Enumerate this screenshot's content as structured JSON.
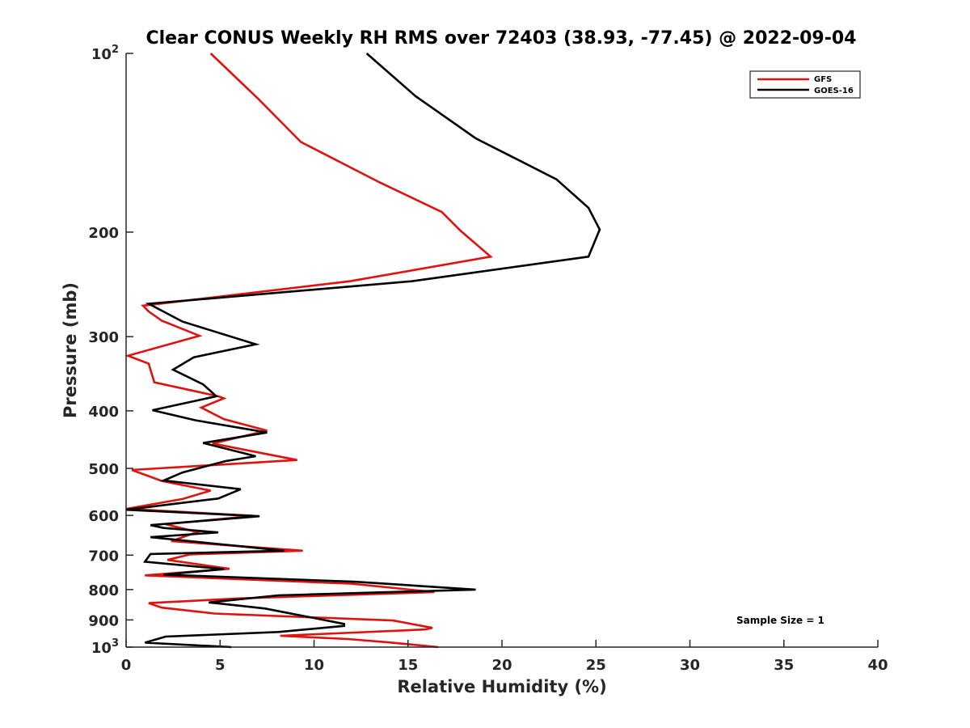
{
  "chart_data": {
    "type": "line",
    "orientation": "profile",
    "title": "Clear CONUS Weekly RH RMS over 72403 (38.93, -77.45) @ 2022-09-04",
    "xlabel": "Relative Humidity (%)",
    "ylabel": "Pressure (mb)",
    "xlim": [
      0,
      40
    ],
    "ylim": [
      100,
      1000
    ],
    "y_scale": "log",
    "y_reversed": true,
    "grid": false,
    "legend_position": "top-right",
    "x_ticks": [
      {
        "value": 0,
        "label": "0"
      },
      {
        "value": 5,
        "label": "5"
      },
      {
        "value": 10,
        "label": "10"
      },
      {
        "value": 15,
        "label": "15"
      },
      {
        "value": 20,
        "label": "20"
      },
      {
        "value": 25,
        "label": "25"
      },
      {
        "value": 30,
        "label": "30"
      },
      {
        "value": 35,
        "label": "35"
      },
      {
        "value": 40,
        "label": "40"
      }
    ],
    "y_ticks": [
      {
        "value": 100,
        "base": "10",
        "exp": "2"
      },
      {
        "value": 200,
        "label": "200"
      },
      {
        "value": 300,
        "label": "300"
      },
      {
        "value": 400,
        "label": "400"
      },
      {
        "value": 500,
        "label": "500"
      },
      {
        "value": 600,
        "label": "600"
      },
      {
        "value": 700,
        "label": "700"
      },
      {
        "value": 800,
        "label": "800"
      },
      {
        "value": 900,
        "label": "900"
      },
      {
        "value": 1000,
        "base": "10",
        "exp": "3"
      }
    ],
    "series": [
      {
        "name": "GFS",
        "color": "#e0120f",
        "points": [
          [
            4.5,
            100
          ],
          [
            7.0,
            119
          ],
          [
            9.3,
            141
          ],
          [
            13.5,
            165
          ],
          [
            16.8,
            185
          ],
          [
            17.8,
            199
          ],
          [
            19.4,
            220
          ],
          [
            11.9,
            242
          ],
          [
            0.9,
            266
          ],
          [
            1.2,
            272
          ],
          [
            1.9,
            282
          ],
          [
            3.9,
            299
          ],
          [
            0.1,
            323
          ],
          [
            1.2,
            333
          ],
          [
            1.5,
            358
          ],
          [
            4.9,
            378
          ],
          [
            5.2,
            381
          ],
          [
            4.0,
            395
          ],
          [
            5.2,
            413
          ],
          [
            7.5,
            432
          ],
          [
            4.6,
            454
          ],
          [
            9.1,
            484
          ],
          [
            0.3,
            503
          ],
          [
            1.9,
            525
          ],
          [
            4.5,
            545
          ],
          [
            3.0,
            563
          ],
          [
            0.0,
            585
          ],
          [
            6.8,
            601
          ],
          [
            2.1,
            621
          ],
          [
            3.8,
            640
          ],
          [
            2.4,
            663
          ],
          [
            9.4,
            688
          ],
          [
            3.4,
            698
          ],
          [
            2.2,
            713
          ],
          [
            5.5,
            738
          ],
          [
            1.0,
            757
          ],
          [
            12.0,
            782
          ],
          [
            16.4,
            808
          ],
          [
            6.0,
            828
          ],
          [
            1.2,
            843
          ],
          [
            1.9,
            858
          ],
          [
            4.7,
            878
          ],
          [
            14.2,
            902
          ],
          [
            16.3,
            928
          ],
          [
            15.9,
            934
          ],
          [
            8.2,
            957
          ],
          [
            11.8,
            969
          ],
          [
            14.0,
            982
          ],
          [
            16.6,
            1000
          ]
        ]
      },
      {
        "name": "GOES-16",
        "color": "#000000",
        "points": [
          [
            12.8,
            100
          ],
          [
            15.4,
            118
          ],
          [
            18.6,
            139
          ],
          [
            22.9,
            163
          ],
          [
            24.6,
            182
          ],
          [
            25.2,
            198
          ],
          [
            24.6,
            220
          ],
          [
            15.2,
            242
          ],
          [
            1.2,
            264
          ],
          [
            3.0,
            283
          ],
          [
            6.9,
            309
          ],
          [
            3.6,
            325
          ],
          [
            2.5,
            341
          ],
          [
            4.1,
            361
          ],
          [
            4.8,
            378
          ],
          [
            1.4,
            399
          ],
          [
            3.7,
            415
          ],
          [
            7.5,
            435
          ],
          [
            4.1,
            453
          ],
          [
            6.9,
            477
          ],
          [
            5.3,
            486
          ],
          [
            3.0,
            508
          ],
          [
            2.0,
            524
          ],
          [
            6.1,
            542
          ],
          [
            4.9,
            562
          ],
          [
            0.0,
            587
          ],
          [
            7.1,
            602
          ],
          [
            1.3,
            623
          ],
          [
            2.0,
            630
          ],
          [
            4.9,
            641
          ],
          [
            1.3,
            653
          ],
          [
            8.4,
            688
          ],
          [
            1.3,
            697
          ],
          [
            1.0,
            718
          ],
          [
            5.2,
            739
          ],
          [
            2.0,
            755
          ],
          [
            12.2,
            776
          ],
          [
            18.6,
            800
          ],
          [
            8.1,
            818
          ],
          [
            4.4,
            841
          ],
          [
            5.2,
            846
          ],
          [
            7.4,
            861
          ],
          [
            11.6,
            914
          ],
          [
            11.6,
            921
          ],
          [
            8.1,
            943
          ],
          [
            2.1,
            960
          ],
          [
            1.0,
            983
          ],
          [
            5.6,
            1000
          ]
        ]
      }
    ],
    "annotation": "Sample Size = 1"
  }
}
